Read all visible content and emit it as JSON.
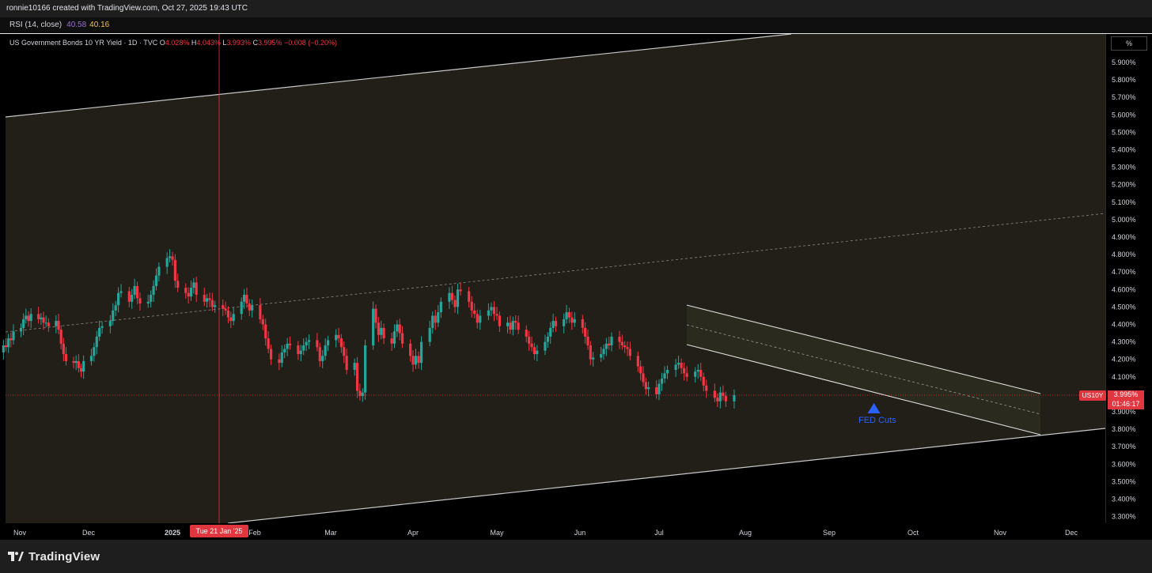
{
  "header": {
    "attribution": "ronnie10166 created with TradingView.com, Oct 27, 2025 19:43 UTC"
  },
  "rsi": {
    "label": "RSI (14, close)",
    "value1": "40.58",
    "value2": "40.16",
    "value1_color": "#9575cd",
    "value2_color": "#f5c04b"
  },
  "legend": {
    "title": "US Government Bonds 10 YR Yield · 1D · TVC",
    "open_key": "O",
    "open": "4.028%",
    "high_key": "H",
    "high": "4.043%",
    "low_key": "L",
    "low": "3.993%",
    "close_key": "C",
    "close": "3.995%",
    "change": "−0.008 (−0.20%)"
  },
  "price_scale": {
    "unit_button": "%",
    "symbol_tag": "US10Y",
    "last_price": "3.995%",
    "countdown": "01:46:17"
  },
  "crosshair": {
    "date_label": "Tue 21 Jan '25"
  },
  "annotation": {
    "text": "FED Cuts",
    "icon": "arrow-up-icon",
    "color": "#2962ff"
  },
  "footer": {
    "brand": "TradingView",
    "logo_icon": "tradingview-logo-icon"
  },
  "colors": {
    "up": "#26a69a",
    "down": "#f23645",
    "channel_fill": "#221e18",
    "channel_line": "#c8c8c8",
    "crosshair": "#e0363f"
  },
  "chart_data": {
    "type": "candlestick",
    "title": "US Government Bonds 10 YR Yield · 1D · TVC",
    "symbol": "US10Y",
    "x_ticks": [
      "Nov",
      "Dec",
      "2025",
      "Feb",
      "Mar",
      "Apr",
      "May",
      "Jun",
      "Jul",
      "Aug",
      "Sep",
      "Oct",
      "Nov",
      "Dec"
    ],
    "x_tick_dates": [
      "2024-11-01",
      "2024-12-01",
      "2025-01-01",
      "2025-02-01",
      "2025-03-01",
      "2025-04-01",
      "2025-05-01",
      "2025-06-01",
      "2025-07-01",
      "2025-08-01",
      "2025-09-01",
      "2025-10-01",
      "2025-11-01",
      "2025-12-01"
    ],
    "y_ticks": [
      "5.900%",
      "5.800%",
      "5.700%",
      "5.600%",
      "5.500%",
      "5.400%",
      "5.300%",
      "5.200%",
      "5.100%",
      "5.000%",
      "4.900%",
      "4.800%",
      "4.700%",
      "4.600%",
      "4.500%",
      "4.400%",
      "4.300%",
      "4.200%",
      "4.100%",
      "3.900%",
      "3.800%",
      "3.700%",
      "3.600%",
      "3.500%",
      "3.400%",
      "3.300%"
    ],
    "y_range": [
      3.26,
      5.97
    ],
    "last_close": 3.995,
    "closes_series": {
      "start_date": "2024-10-25",
      "frequency": "trading days",
      "values": [
        4.24,
        4.28,
        4.27,
        4.32,
        4.31,
        4.36,
        4.38,
        4.43,
        4.45,
        4.42,
        4.46,
        4.43,
        4.44,
        4.41,
        4.41,
        4.39,
        4.42,
        4.37,
        4.29,
        4.23,
        4.19,
        4.18,
        4.19,
        4.15,
        4.13,
        4.19,
        4.22,
        4.27,
        4.33,
        4.38,
        4.39,
        4.42,
        4.48,
        4.51,
        4.58,
        4.59,
        4.53,
        4.57,
        4.62,
        4.55,
        4.52,
        4.53,
        4.57,
        4.62,
        4.68,
        4.73,
        4.78,
        4.79,
        4.77,
        4.65,
        4.61,
        4.58,
        4.56,
        4.61,
        4.64,
        4.57,
        4.53,
        4.55,
        4.54,
        4.5,
        4.51,
        4.49,
        4.48,
        4.44,
        4.42,
        4.46,
        4.53,
        4.57,
        4.52,
        4.48,
        4.51,
        4.43,
        4.4,
        4.32,
        4.26,
        4.2,
        4.18,
        4.24,
        4.26,
        4.29,
        4.28,
        4.23,
        4.25,
        4.28,
        4.3,
        4.31,
        4.27,
        4.19,
        4.22,
        4.28,
        4.31,
        4.34,
        4.32,
        4.27,
        4.22,
        4.14,
        4.18,
        4.02,
        3.99,
        4.01,
        4.28,
        4.49,
        4.41,
        4.34,
        4.38,
        4.32,
        4.29,
        4.36,
        4.4,
        4.35,
        4.29,
        4.22,
        4.17,
        4.22,
        4.18,
        4.3,
        4.38,
        4.45,
        4.41,
        4.47,
        4.53,
        4.58,
        4.54,
        4.5,
        4.6,
        4.59,
        4.53,
        4.48,
        4.46,
        4.41,
        4.45,
        4.48,
        4.5,
        4.46,
        4.45,
        4.39,
        4.41,
        4.37,
        4.42,
        4.41,
        4.37,
        4.33,
        4.29,
        4.27,
        4.23,
        4.25,
        4.3,
        4.33,
        4.38,
        4.42,
        4.39,
        4.43,
        4.47,
        4.44,
        4.41,
        4.43,
        4.38,
        4.33,
        4.28,
        4.2,
        4.21,
        4.23,
        4.26,
        4.29,
        4.28,
        4.33,
        4.3,
        4.28,
        4.27,
        4.26,
        4.22,
        4.16,
        4.12,
        4.07,
        4.03,
        4.04,
        4.0,
        4.06,
        4.09,
        4.12,
        4.14,
        4.17,
        4.18,
        4.15,
        4.12,
        4.1,
        4.13,
        4.14,
        4.1,
        4.05,
        4.02,
        3.98,
        3.96,
        4.01,
        3.99,
        3.96,
        3.995
      ]
    },
    "drawings": [
      {
        "type": "parallel_channel",
        "direction": "rising",
        "note": "wide channel with dashed midline"
      },
      {
        "type": "parallel_channel",
        "direction": "falling",
        "note": "narrow descending channel Jul–Oct 2025 with dashed midline"
      }
    ],
    "grid": false
  }
}
